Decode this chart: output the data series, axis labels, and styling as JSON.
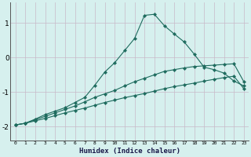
{
  "xlabel": "Humidex (Indice chaleur)",
  "bg_color": "#d6f0ee",
  "grid_color": "#c8b8c8",
  "line_color": "#1e6b5e",
  "x_values": [
    0,
    1,
    2,
    3,
    4,
    5,
    6,
    7,
    8,
    9,
    10,
    11,
    12,
    13,
    14,
    15,
    16,
    17,
    18,
    19,
    20,
    21,
    22,
    23
  ],
  "line1": [
    -1.95,
    -1.9,
    -1.78,
    -1.65,
    -1.55,
    -1.45,
    -1.3,
    -1.15,
    -0.8,
    -0.42,
    -0.15,
    0.2,
    0.55,
    1.22,
    1.25,
    0.92,
    0.68,
    0.45,
    0.1,
    -0.28,
    -0.35,
    -0.45,
    -0.68,
    -0.82
  ],
  "line2": [
    -1.95,
    -1.9,
    -1.8,
    -1.7,
    -1.6,
    -1.5,
    -1.4,
    -1.28,
    -1.15,
    -1.05,
    -0.95,
    -0.82,
    -0.7,
    -0.6,
    -0.5,
    -0.4,
    -0.35,
    -0.3,
    -0.26,
    -0.24,
    -0.22,
    -0.2,
    -0.18,
    -0.7
  ],
  "line3": [
    -1.95,
    -1.9,
    -1.83,
    -1.76,
    -1.68,
    -1.6,
    -1.53,
    -1.46,
    -1.38,
    -1.3,
    -1.23,
    -1.16,
    -1.1,
    -1.04,
    -0.97,
    -0.9,
    -0.84,
    -0.79,
    -0.74,
    -0.68,
    -0.63,
    -0.58,
    -0.54,
    -0.9
  ],
  "ylim": [
    -2.4,
    1.6
  ],
  "xlim": [
    -0.5,
    23.5
  ],
  "yticks": [
    -2,
    -1,
    0,
    1
  ],
  "xticks": [
    0,
    1,
    2,
    3,
    4,
    5,
    6,
    7,
    8,
    9,
    10,
    11,
    12,
    13,
    14,
    15,
    16,
    17,
    18,
    19,
    20,
    21,
    22,
    23
  ]
}
